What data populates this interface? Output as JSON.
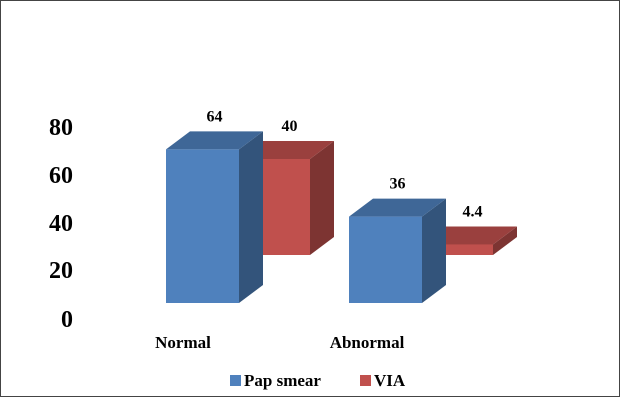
{
  "chart_data": {
    "type": "bar",
    "style": "3d-clustered-column",
    "categories": [
      "Normal",
      "Abnormal"
    ],
    "series": [
      {
        "name": "Pap smear",
        "values": [
          64,
          36
        ],
        "labels": [
          "64",
          "36"
        ],
        "color": "#4F81BD"
      },
      {
        "name": "VIA",
        "values": [
          40,
          4.4
        ],
        "labels": [
          "40",
          "4.4"
        ],
        "color": "#C0504D"
      }
    ],
    "yticks": [
      "0",
      "20",
      "40",
      "60",
      "80"
    ],
    "ylim": [
      0,
      80
    ],
    "grid": false,
    "legend_position": "bottom"
  }
}
